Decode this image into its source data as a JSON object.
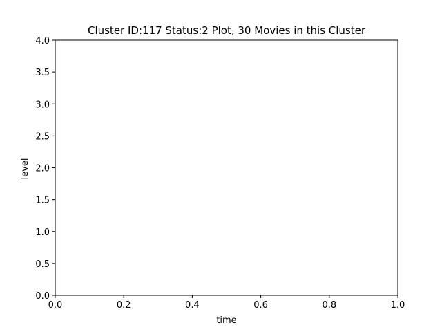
{
  "chart_data": {
    "type": "line",
    "title": "Cluster ID:117 Status:2 Plot, 30 Movies in this Cluster",
    "xlabel": "time",
    "ylabel": "level",
    "xlim": [
      0.0,
      1.0
    ],
    "ylim": [
      0.0,
      4.0
    ],
    "xticks": [
      "0.0",
      "0.2",
      "0.4",
      "0.6",
      "0.8",
      "1.0"
    ],
    "yticks": [
      "0.0",
      "0.5",
      "1.0",
      "1.5",
      "2.0",
      "2.5",
      "3.0",
      "3.5",
      "4.0"
    ],
    "grid": false,
    "series": []
  }
}
